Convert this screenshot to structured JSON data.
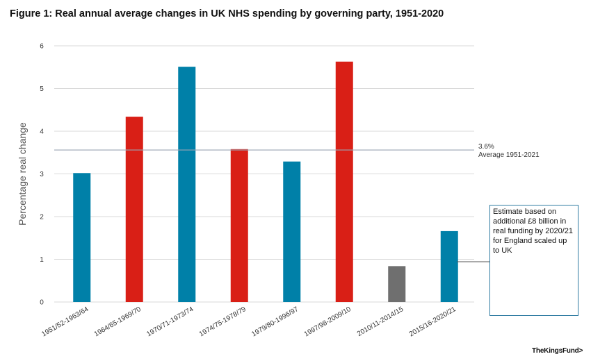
{
  "colors": {
    "conservative": "#0080a8",
    "labour": "#d91f16",
    "coalition": "#6f6f6f",
    "gridline": "#d9d9d9",
    "average_line": "#9aa5b3",
    "note_border": "#2d7aa0"
  },
  "chart_data": {
    "type": "bar",
    "title": "Figure 1: Real annual average changes in UK NHS spending by governing party, 1951-2020",
    "ylabel": "Percentage real change",
    "xlabel": "",
    "ylim": [
      0,
      6
    ],
    "yticks": [
      "0",
      "1",
      "2",
      "3",
      "4",
      "5",
      "6"
    ],
    "grid": true,
    "categories": [
      "1951/52-1963/64",
      "1964/65-1969/70",
      "1970/71-1973/74",
      "1974/75-1978/79",
      "1979/80-1996/97",
      "1997/98-2009/10",
      "2010/11-2014/15",
      "2015/16-2020/21"
    ],
    "values": [
      3.02,
      4.34,
      5.51,
      3.58,
      3.29,
      5.63,
      0.84,
      1.66
    ],
    "bar_colors": [
      "#0080a8",
      "#d91f16",
      "#0080a8",
      "#d91f16",
      "#0080a8",
      "#d91f16",
      "#6f6f6f",
      "#0080a8"
    ],
    "average": {
      "value": 3.56,
      "value_label": "3.6%",
      "label": "Average 1951-2021"
    },
    "annotation": "Estimate based on additional £8 billion in real funding by 2020/21 for England scaled up to UK"
  },
  "branding": {
    "logo_text": "TheKingsFund>"
  }
}
